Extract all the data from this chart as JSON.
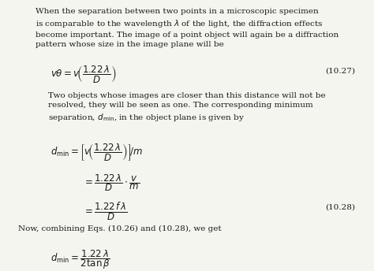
{
  "bg_color": "#f5f5f0",
  "text_color": "#1a1a1a",
  "figsize": [
    4.74,
    3.44
  ],
  "dpi": 100,
  "paragraph1": "When the separation between two points in a microscopic specimen\nis comparable to the wavelength $\\lambda$ of the light, the diffraction effects\nbecome important. The image of a point object will again be a diffraction\npattern whose size in the image plane will be",
  "eq1_lhs": "$v\\theta = v\\!\\left(\\dfrac{1.22\\,\\lambda}{D}\\right)$",
  "eq1_label": "(10.27)",
  "paragraph2": "Two objects whose images are closer than this distance will not be\nresolved, they will be seen as one. The corresponding minimum\nseparation, $d_{\\rm min}$, in the object plane is given by",
  "eq2a": "$d_{\\rm min} = \\left[v\\!\\left(\\dfrac{1.22\\,\\lambda}{D}\\right)\\right]\\!/m$",
  "eq2b": "$= \\dfrac{1.22\\,\\lambda}{D} \\cdot \\dfrac{v}{m}$",
  "eq2c": "$= \\dfrac{1.22\\,f\\,\\lambda}{D}$",
  "eq2_label": "(10.28)",
  "paragraph3": "Now, combining Eqs. (10.26) and (10.28), we get",
  "eq3": "$d_{\\rm min} = \\dfrac{1.22\\,\\lambda}{2\\tan\\beta}$"
}
